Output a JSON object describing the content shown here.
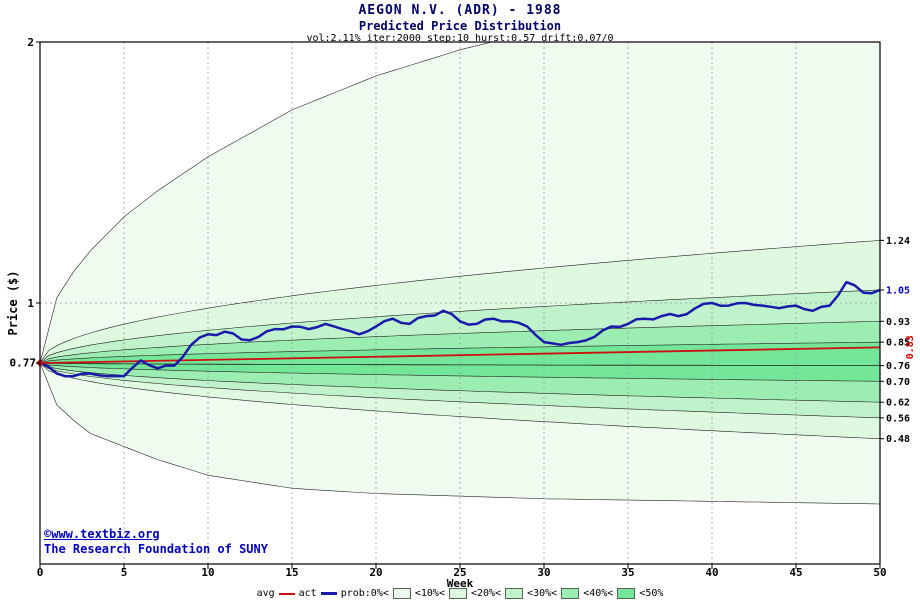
{
  "header": {
    "title": "AEGON N.V. (ADR) - 1988",
    "subtitle": "Predicted Price Distribution",
    "params": "vol:2.11% iter:2000 step:10 hurst:0.57 drift:0.07/0"
  },
  "axes": {
    "x_label": "Week",
    "y_label": "Price ($)",
    "x_ticks": [
      0,
      5,
      10,
      15,
      20,
      25,
      30,
      35,
      40,
      45,
      50
    ],
    "y_ticks": [
      {
        "label": "2",
        "value": 2
      },
      {
        "label": "1",
        "value": 1
      }
    ],
    "start_price_label": "0.77"
  },
  "right_labels": [
    {
      "text": "1.24",
      "value": 1.24,
      "color": "#000000"
    },
    {
      "text": "1.05",
      "value": 1.05,
      "color": "#0000bb"
    },
    {
      "text": "0.93",
      "value": 0.93,
      "color": "#000000"
    },
    {
      "text": "0.85",
      "value": 0.85,
      "color": "#000000"
    },
    {
      "text": "0.76",
      "value": 0.76,
      "color": "#000000"
    },
    {
      "text": "0.70",
      "value": 0.7,
      "color": "#000000"
    },
    {
      "text": "0.62",
      "value": 0.62,
      "color": "#000000"
    },
    {
      "text": "0.56",
      "value": 0.56,
      "color": "#000000"
    },
    {
      "text": "0.48",
      "value": 0.48,
      "color": "#000000"
    }
  ],
  "avg_end_label": {
    "text": "0.83",
    "color": "#cc0000"
  },
  "chart_data": {
    "type": "area",
    "title": "AEGON N.V. (ADR) - 1988",
    "subtitle": "Predicted Price Distribution",
    "xlabel": "Week",
    "ylabel": "Price ($)",
    "xlim": [
      0,
      50
    ],
    "ylim": [
      0,
      2
    ],
    "grid": "dotted, vertical every 5 weeks, horizontal at price 1",
    "start_price": 0.77,
    "band_colors": [
      "#f0fbf0",
      "#dff8e0",
      "#c0f3cb",
      "#9bedb2",
      "#74e69a"
    ],
    "bands": {
      "curve_exponent": 0.5,
      "upper_ends": [
        0.85,
        0.93,
        1.05,
        1.24
      ],
      "lower_ends": [
        0.7,
        0.62,
        0.56,
        0.48
      ],
      "median": {
        "end": 0.76
      },
      "upper_extreme": {
        "weeks": [
          0,
          1,
          2,
          3,
          5,
          7,
          10,
          15,
          20,
          25,
          30,
          40,
          50
        ],
        "values": [
          0.77,
          1.02,
          1.12,
          1.2,
          1.33,
          1.43,
          1.56,
          1.74,
          1.87,
          1.97,
          2.05,
          2.14,
          2.22
        ]
      },
      "lower_extreme": {
        "weeks": [
          0,
          1,
          2,
          3,
          5,
          7,
          10,
          15,
          20,
          25,
          30,
          40,
          50
        ],
        "values": [
          0.77,
          0.61,
          0.55,
          0.5,
          0.45,
          0.4,
          0.34,
          0.29,
          0.27,
          0.26,
          0.25,
          0.24,
          0.23
        ]
      }
    },
    "avg_line": {
      "name": "avg",
      "color": "#cc1111",
      "start": 0.77,
      "end": 0.83
    },
    "act_line": {
      "name": "act",
      "color": "#1a1aaa",
      "x_step": 1,
      "values": [
        0.77,
        0.73,
        0.72,
        0.73,
        0.72,
        0.72,
        0.78,
        0.75,
        0.76,
        0.84,
        0.88,
        0.89,
        0.86,
        0.87,
        0.9,
        0.91,
        0.9,
        0.92,
        0.9,
        0.88,
        0.91,
        0.94,
        0.92,
        0.95,
        0.97,
        0.93,
        0.92,
        0.94,
        0.93,
        0.91,
        0.85,
        0.84,
        0.85,
        0.87,
        0.91,
        0.92,
        0.94,
        0.95,
        0.95,
        0.98,
        1.0,
        0.99,
        1.0,
        0.99,
        0.98,
        0.99,
        0.97,
        0.99,
        1.08,
        1.04,
        1.05
      ]
    }
  },
  "legend": {
    "items": [
      {
        "kind": "label",
        "text": "avg"
      },
      {
        "kind": "line",
        "thick": false
      },
      {
        "kind": "label",
        "text": "act"
      },
      {
        "kind": "line",
        "thick": true
      },
      {
        "kind": "label",
        "text": "prob:0%<"
      },
      {
        "kind": "swatch",
        "index": 0
      },
      {
        "kind": "label",
        "text": "<10%<"
      },
      {
        "kind": "swatch",
        "index": 1
      },
      {
        "kind": "label",
        "text": "<20%<"
      },
      {
        "kind": "swatch",
        "index": 2
      },
      {
        "kind": "label",
        "text": "<30%<"
      },
      {
        "kind": "swatch",
        "index": 3
      },
      {
        "kind": "label",
        "text": "<40%<"
      },
      {
        "kind": "swatch",
        "index": 4
      },
      {
        "kind": "label",
        "text": "<50%"
      }
    ]
  },
  "footer": {
    "copy1": "©www.textbiz.org",
    "copy2": "The Research Foundation of SUNY"
  }
}
